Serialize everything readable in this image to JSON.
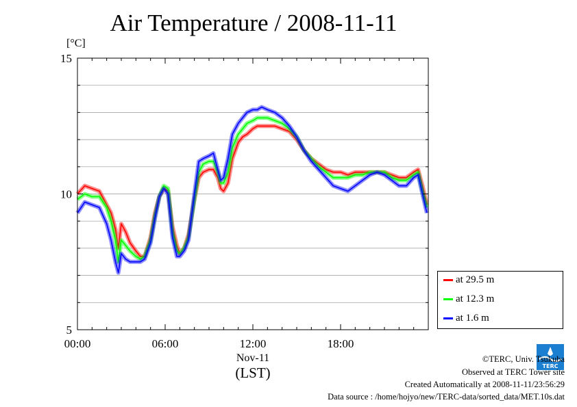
{
  "header": {
    "title": "Air Temperature / 2008-11-11",
    "unit": "[°C]"
  },
  "footer": {
    "copyright": "©TERC, Univ. Tsukuba",
    "observed": "Observed at TERC Tower site",
    "created": "Created Automatically at 2008-11-11/23:56:29",
    "source": "Data source : /home/hojyo/new/TERC-data/sorted_data/MET.10s.dat"
  },
  "logo": {
    "icon": "terc-logo-icon",
    "text": "TERC"
  },
  "chart_data": {
    "type": "line",
    "title": "Air Temperature / 2008-11-11",
    "ylabel": "[°C]",
    "xlabel": "(LST)",
    "x_sub_label": "Nov-11",
    "xlim": [
      0,
      24
    ],
    "ylim": [
      5,
      15
    ],
    "x_ticks": [
      0,
      6,
      12,
      18
    ],
    "x_tick_labels": [
      "00:00",
      "06:00",
      "12:00",
      "18:00"
    ],
    "y_ticks": [
      5,
      10,
      15
    ],
    "y_tick_labels": [
      "5",
      "10",
      "15"
    ],
    "grid": "horizontal",
    "legend_position": "bottom-right",
    "x": [
      0,
      0.5,
      1,
      1.5,
      2,
      2.3,
      2.6,
      2.8,
      3,
      3.3,
      3.6,
      4,
      4.3,
      4.6,
      5,
      5.3,
      5.6,
      5.9,
      6.2,
      6.5,
      6.8,
      7,
      7.3,
      7.6,
      8,
      8.3,
      8.6,
      9,
      9.3,
      9.6,
      9.8,
      10,
      10.3,
      10.6,
      11,
      11.3,
      11.6,
      12,
      12.3,
      12.6,
      13,
      13.5,
      14,
      14.5,
      15,
      15.5,
      16,
      16.5,
      17,
      17.5,
      18,
      18.5,
      19,
      19.5,
      20,
      20.5,
      21,
      21.5,
      22,
      22.5,
      23,
      23.3,
      23.6,
      23.9
    ],
    "series": [
      {
        "name": "at 29.5 m",
        "color": "#ff0000",
        "values": [
          10.0,
          10.3,
          10.2,
          10.1,
          9.6,
          9.3,
          8.7,
          8.0,
          8.9,
          8.6,
          8.2,
          7.9,
          7.7,
          7.7,
          8.4,
          9.3,
          9.9,
          10.2,
          10.1,
          8.8,
          8.1,
          7.8,
          8.0,
          8.5,
          9.8,
          10.6,
          10.8,
          10.9,
          10.9,
          10.6,
          10.2,
          10.1,
          10.4,
          11.3,
          11.9,
          12.1,
          12.2,
          12.4,
          12.5,
          12.5,
          12.5,
          12.5,
          12.4,
          12.3,
          12.0,
          11.6,
          11.3,
          11.1,
          10.9,
          10.8,
          10.8,
          10.7,
          10.8,
          10.8,
          10.8,
          10.8,
          10.8,
          10.7,
          10.6,
          10.6,
          10.8,
          10.9,
          10.3,
          9.6
        ]
      },
      {
        "name": "at 12.3 m",
        "color": "#00ff00",
        "values": [
          9.8,
          10.0,
          9.9,
          9.9,
          9.5,
          9.0,
          8.3,
          7.5,
          8.3,
          8.1,
          7.9,
          7.7,
          7.6,
          7.7,
          8.3,
          9.2,
          9.9,
          10.3,
          10.2,
          8.6,
          7.9,
          7.8,
          8.0,
          8.4,
          9.8,
          10.8,
          11.1,
          11.2,
          11.2,
          10.8,
          10.4,
          10.4,
          10.8,
          11.7,
          12.2,
          12.4,
          12.6,
          12.7,
          12.8,
          12.8,
          12.8,
          12.7,
          12.6,
          12.4,
          12.1,
          11.6,
          11.3,
          11.0,
          10.8,
          10.6,
          10.6,
          10.6,
          10.7,
          10.7,
          10.8,
          10.8,
          10.8,
          10.6,
          10.5,
          10.5,
          10.7,
          10.8,
          10.1,
          9.5
        ]
      },
      {
        "name": "at 1.6 m",
        "color": "#0000ff",
        "values": [
          9.3,
          9.7,
          9.6,
          9.5,
          8.9,
          8.3,
          7.5,
          7.1,
          7.8,
          7.6,
          7.5,
          7.5,
          7.5,
          7.6,
          8.2,
          9.1,
          9.9,
          10.2,
          10.0,
          8.4,
          7.7,
          7.7,
          7.9,
          8.3,
          10.0,
          11.2,
          11.3,
          11.4,
          11.5,
          10.9,
          10.5,
          10.6,
          11.3,
          12.2,
          12.6,
          12.8,
          13.0,
          13.1,
          13.1,
          13.2,
          13.1,
          13.0,
          12.8,
          12.5,
          12.1,
          11.6,
          11.2,
          10.9,
          10.6,
          10.3,
          10.2,
          10.1,
          10.3,
          10.5,
          10.7,
          10.8,
          10.7,
          10.5,
          10.3,
          10.3,
          10.6,
          10.7,
          10.0,
          9.3
        ]
      }
    ]
  }
}
